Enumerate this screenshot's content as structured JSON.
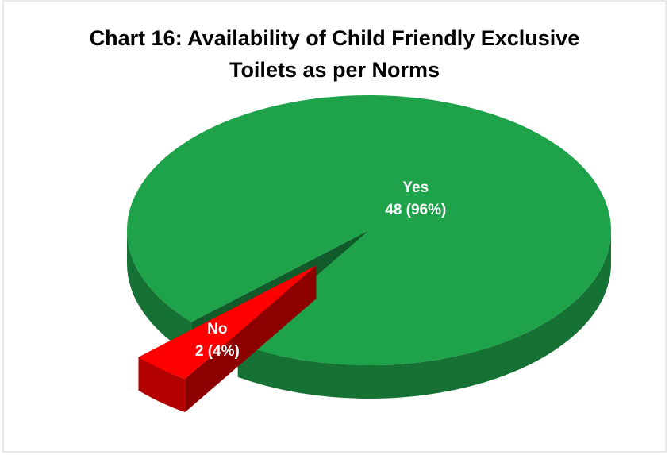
{
  "chart_data": {
    "type": "pie",
    "title": "Chart 16: Availability of Child Friendly Exclusive Toilets as per Norms",
    "categories": [
      "Yes",
      "No"
    ],
    "values": [
      48,
      2
    ],
    "value_labels": [
      "48 (96%)",
      "2 (4%)"
    ],
    "colors": [
      "#1fa34a",
      "#ff0000"
    ],
    "explode": [
      false,
      true
    ]
  }
}
